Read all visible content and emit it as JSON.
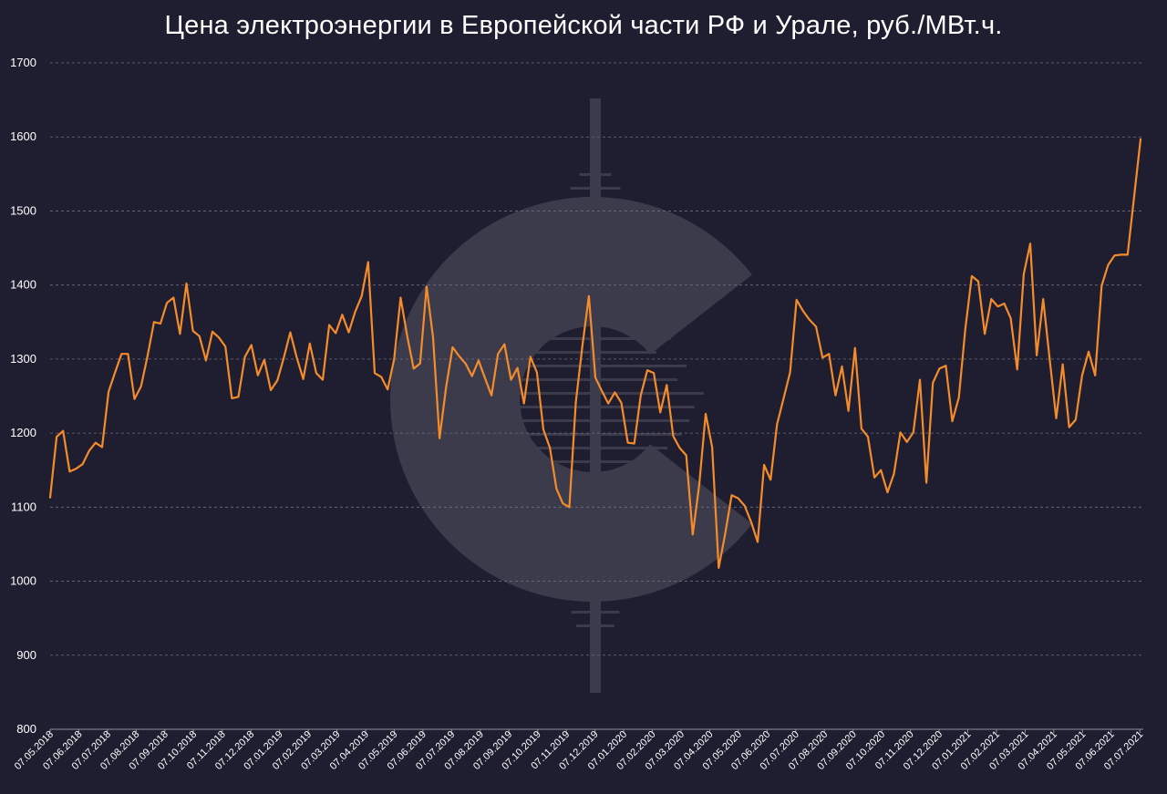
{
  "chart_data": {
    "type": "line",
    "title": "Цена электроэнергии в Европейской части РФ и Урале, руб./МВт.ч.",
    "xlabel": "",
    "ylabel": "",
    "ylim": [
      800,
      1700
    ],
    "yticks": [
      800,
      900,
      1000,
      1100,
      1200,
      1300,
      1400,
      1500,
      1600,
      1700
    ],
    "grid": true,
    "line_color": "#f58c2b",
    "x_tick_labels": [
      "07.05.2018",
      "07.06.2018",
      "07.07.2018",
      "07.08.2018",
      "07.09.2018",
      "07.10.2018",
      "07.11.2018",
      "07.12.2018",
      "07.01.2019",
      "07.02.2019",
      "07.03.2019",
      "07.04.2019",
      "07.05.2019",
      "07.06.2019",
      "07.07.2019",
      "07.08.2019",
      "07.09.2019",
      "07.10.2019",
      "07.11.2019",
      "07.12.2019",
      "07.01.2020",
      "07.02.2020",
      "07.03.2020",
      "07.04.2020",
      "07.05.2020",
      "07.06.2020",
      "07.07.2020",
      "07.08.2020",
      "07.09.2020",
      "07.10.2020",
      "07.11.2020",
      "07.12.2020",
      "07.01.2021",
      "07.02.2021",
      "07.03.2021",
      "07.04.2021",
      "07.05.2021",
      "07.06.2021",
      "07.07.2021"
    ],
    "series": [
      {
        "name": "",
        "values": [
          1113,
          1195,
          1203,
          1148,
          1152,
          1158,
          1176,
          1187,
          1181,
          1256,
          1282,
          1307,
          1307,
          1246,
          1263,
          1304,
          1350,
          1348,
          1376,
          1383,
          1334,
          1402,
          1338,
          1331,
          1298,
          1337,
          1329,
          1317,
          1247,
          1249,
          1303,
          1319,
          1278,
          1299,
          1258,
          1271,
          1302,
          1336,
          1302,
          1273,
          1321,
          1281,
          1272,
          1346,
          1335,
          1360,
          1336,
          1364,
          1385,
          1431,
          1281,
          1276,
          1259,
          1300,
          1383,
          1332,
          1287,
          1294,
          1398,
          1329,
          1193,
          1262,
          1316,
          1304,
          1294,
          1277,
          1298,
          1274,
          1251,
          1307,
          1320,
          1272,
          1288,
          1240,
          1303,
          1282,
          1205,
          1180,
          1125,
          1105,
          1100,
          1242,
          1318,
          1385,
          1275,
          1257,
          1240,
          1255,
          1241,
          1187,
          1186,
          1251,
          1285,
          1281,
          1228,
          1265,
          1196,
          1180,
          1170,
          1063,
          1130,
          1226,
          1181,
          1018,
          1064,
          1116,
          1112,
          1102,
          1080,
          1053,
          1157,
          1137,
          1212,
          1247,
          1282,
          1380,
          1365,
          1353,
          1344,
          1302,
          1307,
          1251,
          1290,
          1230,
          1315,
          1206,
          1195,
          1140,
          1150,
          1120,
          1145,
          1201,
          1188,
          1201,
          1272,
          1133,
          1268,
          1287,
          1291,
          1216,
          1248,
          1341,
          1412,
          1405,
          1334,
          1381,
          1371,
          1375,
          1355,
          1286,
          1415,
          1456,
          1305,
          1381,
          1300,
          1220,
          1293,
          1208,
          1218,
          1278,
          1310,
          1278,
          1399,
          1427,
          1440,
          1441,
          1441,
          1519,
          1597
        ]
      }
    ]
  }
}
